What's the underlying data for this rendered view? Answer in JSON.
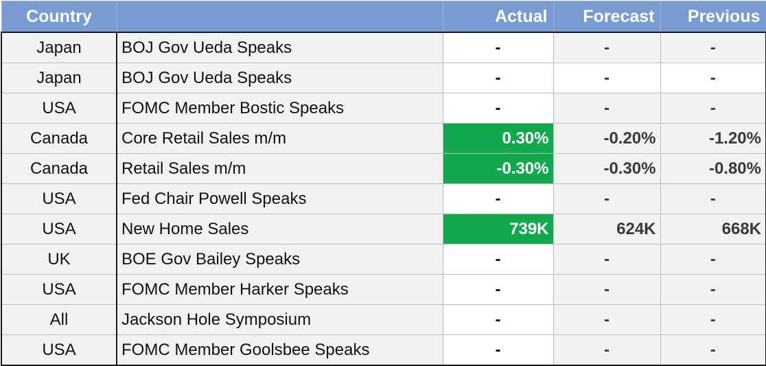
{
  "table": {
    "headers": {
      "country": "Country",
      "event": "",
      "actual": "Actual",
      "forecast": "Forecast",
      "previous": "Previous"
    },
    "rows": [
      {
        "country": "Japan",
        "event": "BOJ Gov Ueda Speaks",
        "actual": "-",
        "forecast": "-",
        "previous": "-"
      },
      {
        "country": "Japan",
        "event": "BOJ Gov Ueda Speaks",
        "actual": "-",
        "forecast": "-",
        "previous": "-"
      },
      {
        "country": "USA",
        "event": "FOMC Member Bostic Speaks",
        "actual": "-",
        "forecast": "-",
        "previous": "-"
      },
      {
        "country": "Canada",
        "event": "Core Retail Sales m/m",
        "actual": "0.30%",
        "forecast": "-0.20%",
        "previous": "-1.20%"
      },
      {
        "country": "Canada",
        "event": "Retail Sales m/m",
        "actual": "-0.30%",
        "forecast": "-0.30%",
        "previous": "-0.80%"
      },
      {
        "country": "USA",
        "event": "Fed Chair Powell Speaks",
        "actual": "-",
        "forecast": "-",
        "previous": "-"
      },
      {
        "country": "USA",
        "event": "New Home Sales",
        "actual": "739K",
        "forecast": "624K",
        "previous": "668K"
      },
      {
        "country": "UK",
        "event": "BOE Gov Bailey Speaks",
        "actual": "-",
        "forecast": "-",
        "previous": "-"
      },
      {
        "country": "USA",
        "event": "FOMC Member Harker Speaks",
        "actual": "-",
        "forecast": "-",
        "previous": "-"
      },
      {
        "country": "All",
        "event": "Jackson Hole Symposium",
        "actual": "-",
        "forecast": "-",
        "previous": "-"
      },
      {
        "country": "USA",
        "event": "FOMC Member Goolsbee Speaks",
        "actual": "-",
        "forecast": "-",
        "previous": "-"
      }
    ]
  },
  "colors": {
    "header_bg": "#7a9ad2",
    "highlight_green": "#11a84e",
    "row_gray": "#f2f2f2"
  }
}
